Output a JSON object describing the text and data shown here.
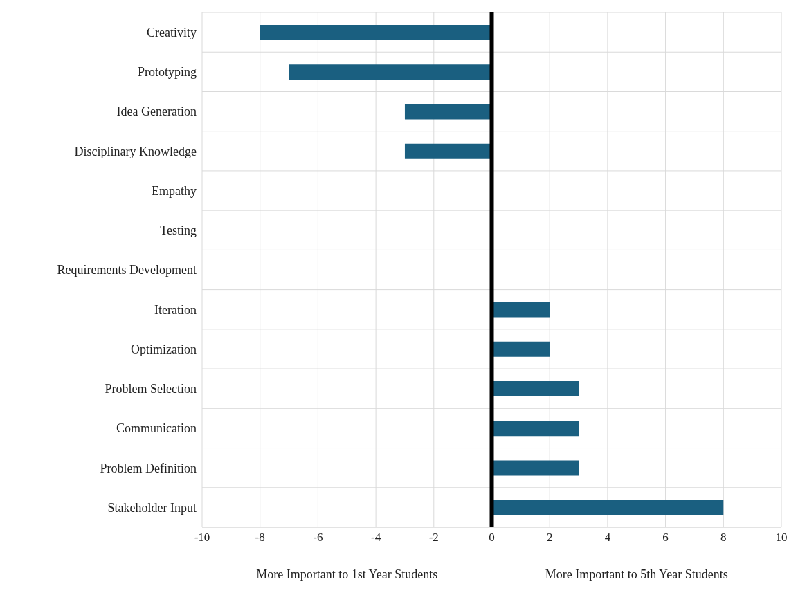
{
  "chart_data": {
    "type": "bar",
    "orientation": "horizontal",
    "categories": [
      "Creativity",
      "Prototyping",
      "Idea Generation",
      "Disciplinary Knowledge",
      "Empathy",
      "Testing",
      "Requirements Development",
      "Iteration",
      "Optimization",
      "Problem Selection",
      "Communication",
      "Problem Definition",
      "Stakeholder Input"
    ],
    "values": [
      -8,
      -7,
      -3,
      -3,
      0,
      0,
      0,
      2,
      2,
      3,
      3,
      3,
      8
    ],
    "color": "#1a5f80",
    "xlim": [
      -10,
      10
    ],
    "xticks": [
      -10,
      -8,
      -6,
      -4,
      -2,
      0,
      2,
      4,
      6,
      8,
      10
    ],
    "grid": true,
    "ref_lines": [
      {
        "axis": "x",
        "value": 0,
        "color": "#000000"
      }
    ],
    "annotations": [
      "More Important to 1st Year Students",
      "More Important to 5th Year Students"
    ]
  }
}
